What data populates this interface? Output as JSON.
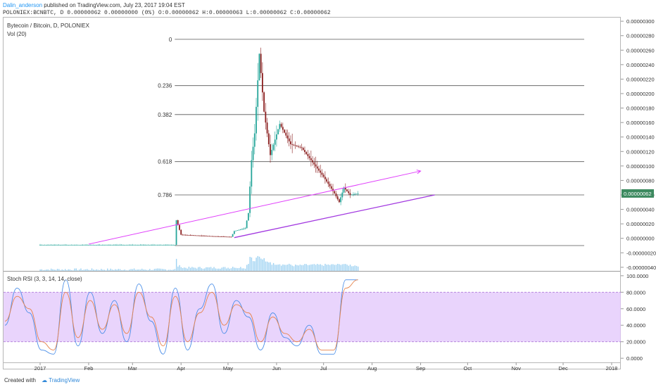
{
  "header": {
    "author": "Dalin_anderson",
    "published_text": "published on TradingView.com, July 23, 2017 19:04 EST",
    "ohlc_line": "POLONIEX:BCNBTC, D  0.00000062 0.00000000 (0%) O:0.00000062 H:0.00000063 L:0.00000062 C:0.00000062"
  },
  "main_pane": {
    "symbol_label": "Bytecoin / Bitcoin, D, POLONIEX",
    "volume_label": "Vol (20)",
    "last_price_label": "0.00000062",
    "colors": {
      "up": "#26a69a",
      "down": "#8b1f1f",
      "price_tag": "#3d8a60",
      "volume": "#7ec3ee",
      "fib": "#555555",
      "channel_upper": "#e040fb",
      "channel_lower": "#a238e0"
    }
  },
  "rsi_pane": {
    "label": "Stoch RSI (3, 3, 14, 14, close)",
    "colors": {
      "k": "#4a8ee8",
      "d": "#e6824a",
      "band": "#e2c6fb",
      "band_line": "#b07cd8"
    }
  },
  "footer": {
    "created_with": "Created with",
    "brand": "TradingView"
  },
  "chart_data": [
    {
      "type": "candlestick",
      "title": "Bytecoin / Bitcoin, D, POLONIEX",
      "y_axis_ticks": [
        "0.00000300",
        "0.00000280",
        "0.00000260",
        "0.00000240",
        "0.00000220",
        "0.00000200",
        "0.00000180",
        "0.00000160",
        "0.00000140",
        "0.00000120",
        "0.00000100",
        "0.00000080",
        "0.00000060",
        "0.00000040",
        "0.00000020",
        "0.00000000",
        "-0.00000020",
        "-0.00000040"
      ],
      "ylim": [
        -4.5e-07,
        3.05e-06
      ],
      "x_axis_ticks": [
        "2017",
        "Feb",
        "Mar",
        "Apr",
        "May",
        "Jun",
        "Jul",
        "Aug",
        "Sep",
        "Oct",
        "Nov",
        "Dec",
        "2018"
      ],
      "fibonacci_levels": [
        {
          "label": "0",
          "value": 2.75e-06
        },
        {
          "label": "0.236",
          "value": 2.11e-06
        },
        {
          "label": "0.382",
          "value": 1.71e-06
        },
        {
          "label": "0.618",
          "value": 1.06e-06
        },
        {
          "label": "0.786",
          "value": 6e-07
        },
        {
          "label": "",
          "value": -1e-07
        }
      ],
      "trend_lines": [
        {
          "name": "upper channel",
          "from": [
            "2017-02-01",
            -8e-08
          ],
          "to": [
            "2017-09-01",
            9.3e-07
          ]
        },
        {
          "name": "lower channel",
          "from": [
            "2017-05-05",
            1e-08
          ],
          "to": [
            "2017-09-10",
            6e-07
          ]
        }
      ],
      "price_path": [
        [
          "2017-01-01",
          -9e-08
        ],
        [
          "2017-02-15",
          -9e-08
        ],
        [
          "2017-03-28",
          -9e-08
        ],
        [
          "2017-03-29",
          2.5e-07
        ],
        [
          "2017-04-01",
          5e-08
        ],
        [
          "2017-04-20",
          3e-08
        ],
        [
          "2017-05-03",
          2e-08
        ],
        [
          "2017-05-05",
          1e-07
        ],
        [
          "2017-05-12",
          1.4e-07
        ],
        [
          "2017-05-14",
          3.5e-07
        ],
        [
          "2017-05-16",
          1.08e-06
        ],
        [
          "2017-05-18",
          1.45e-06
        ],
        [
          "2017-05-21",
          2.55e-06
        ],
        [
          "2017-05-24",
          1.75e-06
        ],
        [
          "2017-05-28",
          1.15e-06
        ],
        [
          "2017-06-03",
          1.58e-06
        ],
        [
          "2017-06-10",
          1.3e-06
        ],
        [
          "2017-06-17",
          1.25e-06
        ],
        [
          "2017-06-24",
          1.05e-06
        ],
        [
          "2017-07-01",
          8.5e-07
        ],
        [
          "2017-07-08",
          6.2e-07
        ],
        [
          "2017-07-11",
          5e-07
        ],
        [
          "2017-07-14",
          7e-07
        ],
        [
          "2017-07-18",
          6e-07
        ],
        [
          "2017-07-23",
          6.2e-07
        ]
      ],
      "last_price": 6.2e-07,
      "volume_series": "Vol (20)"
    },
    {
      "type": "line",
      "title": "Stoch RSI (3, 3, 14, 14, close)",
      "y_axis_ticks": [
        "100.0000",
        "80.0000",
        "60.0000",
        "40.0000",
        "20.0000",
        "0.0000"
      ],
      "ylim": [
        -5,
        105
      ],
      "bands": [
        20,
        80
      ],
      "x": [
        "Jan 1",
        "Jan 8",
        "Jan 15",
        "Jan 22",
        "Jan 29",
        "Feb 5",
        "Feb 12",
        "Feb 19",
        "Feb 26",
        "Mar 5",
        "Mar 12",
        "Mar 19",
        "Mar 26",
        "Apr 2",
        "Apr 9",
        "Apr 16",
        "Apr 23",
        "Apr 30",
        "May 7",
        "May 14",
        "May 21",
        "May 28",
        "Jun 4",
        "Jun 11",
        "Jun 18",
        "Jun 25",
        "Jul 2",
        "Jul 9",
        "Jul 16",
        "Jul 23"
      ],
      "series": [
        {
          "values": [
            40,
            85,
            55,
            10,
            5,
            95,
            15,
            80,
            30,
            70,
            20,
            90,
            45,
            5,
            85,
            10,
            60,
            90,
            30,
            70,
            50,
            10,
            55,
            25,
            15,
            40,
            5,
            5,
            95,
            95
          ]
        },
        {
          "values": [
            45,
            75,
            60,
            20,
            10,
            80,
            25,
            70,
            35,
            65,
            30,
            80,
            50,
            15,
            75,
            20,
            55,
            80,
            40,
            65,
            55,
            20,
            50,
            30,
            20,
            35,
            10,
            10,
            85,
            95
          ]
        }
      ]
    }
  ]
}
